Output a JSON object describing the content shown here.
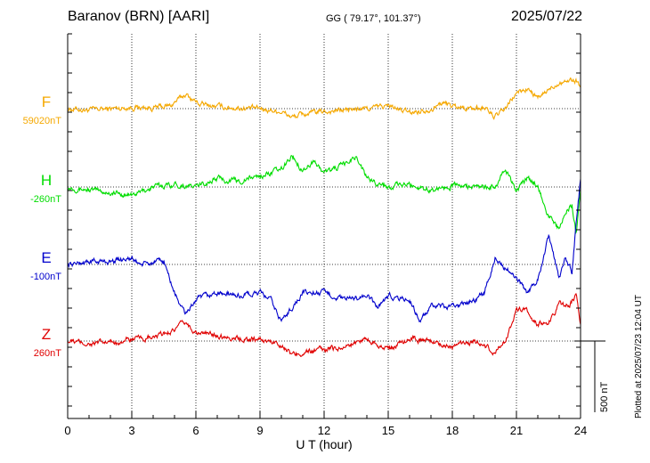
{
  "header": {
    "station": "Baranov (BRN)  [AARI]",
    "coords": "GG ( 79.17°, 101.37°)",
    "date": "2025/07/22"
  },
  "plotted_note": "Plotted at 2025/07/23 12:04 UT",
  "chart_data": {
    "type": "line",
    "xlabel": "U T (hour)",
    "xlim": [
      0,
      24
    ],
    "xticks": [
      "0",
      "3",
      "6",
      "9",
      "12",
      "15",
      "18",
      "21",
      "24"
    ],
    "scale_bar": {
      "label": "500 nT",
      "value": 500
    },
    "series": [
      {
        "name": "F",
        "baseline_label": "59020nT",
        "color": "#f5a800",
        "x": [
          0,
          1,
          2,
          3,
          4,
          4.8,
          5.5,
          6.2,
          7,
          8,
          9,
          10,
          10.5,
          11,
          12,
          13,
          14,
          15,
          16,
          17,
          17.5,
          18,
          19,
          19.5,
          20,
          20.5,
          21,
          21.5,
          22,
          22.5,
          23,
          23.5,
          23.8,
          24
        ],
        "values": [
          0,
          -10,
          0,
          10,
          5,
          20,
          100,
          30,
          15,
          5,
          0,
          -20,
          -60,
          -40,
          -20,
          -10,
          0,
          20,
          -30,
          0,
          40,
          20,
          0,
          10,
          -60,
          0,
          110,
          140,
          70,
          130,
          190,
          200,
          200,
          150
        ]
      },
      {
        "name": "H",
        "baseline_label": "-260nT",
        "color": "#00dd00",
        "x": [
          0,
          1,
          2,
          3,
          4,
          5,
          6,
          7,
          8,
          9,
          10,
          10.5,
          11,
          11.5,
          12,
          13,
          13.5,
          14,
          15,
          16,
          17,
          18,
          19,
          20,
          20.5,
          21,
          21.5,
          22,
          22.5,
          23,
          23.3,
          23.6,
          23.8,
          24
        ],
        "values": [
          0,
          -20,
          -40,
          -60,
          0,
          20,
          0,
          60,
          40,
          80,
          120,
          220,
          120,
          180,
          100,
          160,
          220,
          60,
          0,
          20,
          -20,
          10,
          0,
          0,
          120,
          -30,
          60,
          10,
          -200,
          -300,
          -180,
          -120,
          -340,
          0
        ]
      },
      {
        "name": "E",
        "baseline_label": "-100nT",
        "color": "#0000cc",
        "x": [
          0,
          1,
          2,
          2.8,
          3.5,
          4.5,
          5,
          5.5,
          6,
          7,
          8,
          9,
          9.5,
          10,
          11,
          12,
          13,
          14,
          14.5,
          15,
          16,
          16.5,
          17,
          18,
          19,
          19.5,
          20,
          21,
          21.5,
          22,
          22.5,
          23,
          23.3,
          23.6,
          23.8,
          24
        ],
        "values": [
          0,
          20,
          20,
          50,
          0,
          20,
          -200,
          -350,
          -250,
          -200,
          -220,
          -200,
          -250,
          -400,
          -200,
          -200,
          -250,
          -220,
          -300,
          -220,
          -250,
          -400,
          -300,
          -300,
          -250,
          -200,
          50,
          -100,
          -200,
          -100,
          200,
          -100,
          50,
          -60,
          300,
          600
        ]
      },
      {
        "name": "Z",
        "baseline_label": "260nT",
        "color": "#e00000",
        "x": [
          0,
          1,
          2,
          3,
          4,
          5,
          5.5,
          6,
          7,
          8,
          9,
          10,
          10.5,
          11,
          12,
          13,
          14,
          15,
          16,
          17,
          18,
          19,
          20,
          20.5,
          21,
          21.5,
          22,
          22.5,
          23,
          23.5,
          23.8,
          24
        ],
        "values": [
          0,
          -20,
          -10,
          10,
          20,
          80,
          130,
          60,
          40,
          20,
          10,
          -20,
          -100,
          -80,
          -60,
          -40,
          20,
          -60,
          20,
          0,
          -40,
          0,
          -80,
          10,
          220,
          200,
          120,
          120,
          260,
          260,
          320,
          100
        ]
      }
    ]
  }
}
